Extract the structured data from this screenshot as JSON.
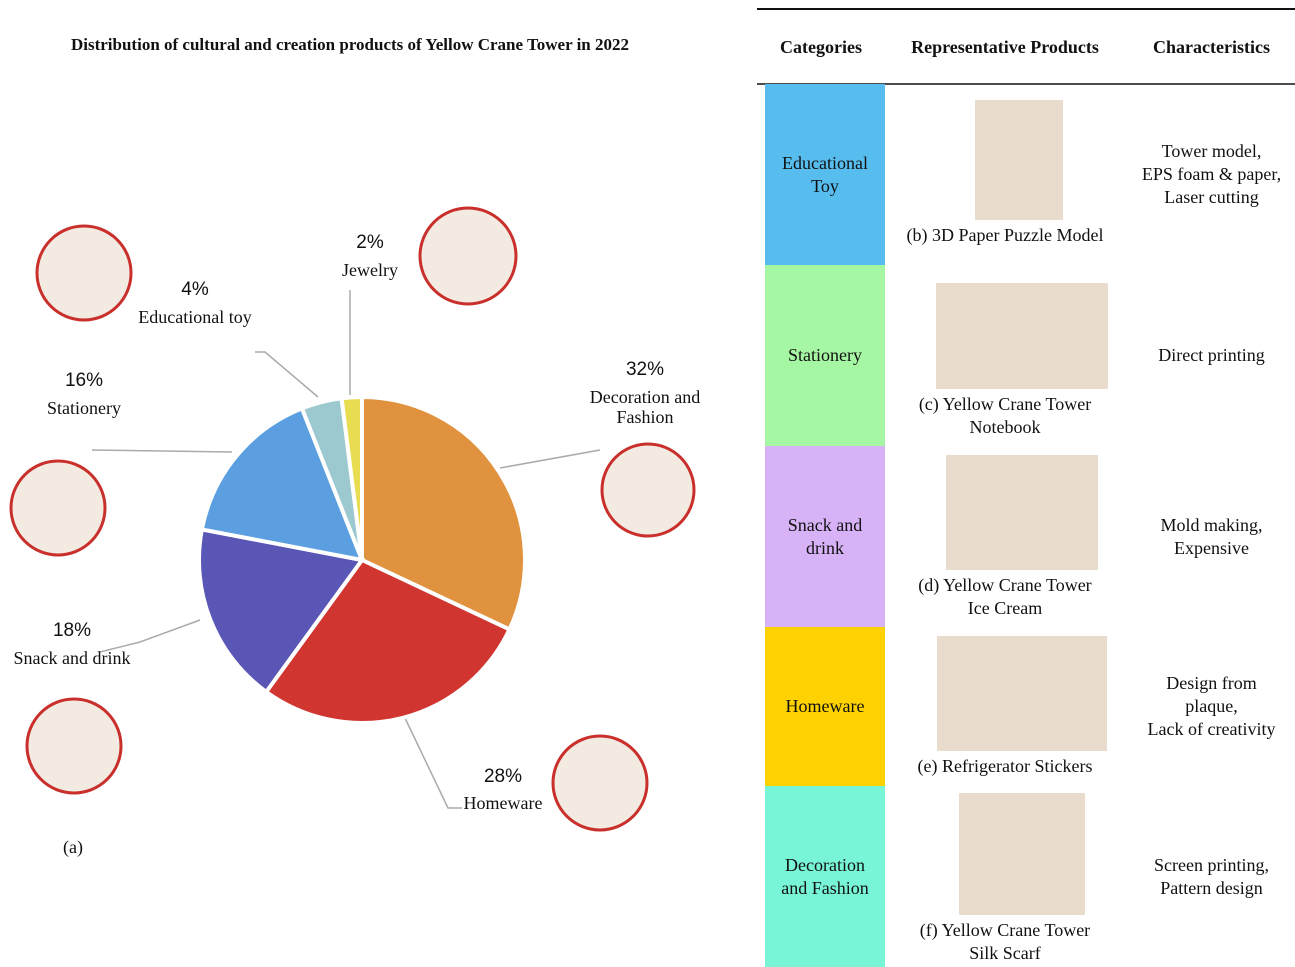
{
  "chart_data": {
    "type": "pie",
    "title": "Distribution of cultural and creation products of Yellow Crane Tower in 2022",
    "categories": [
      "Decoration and Fashion",
      "Homeware",
      "Snack and drink",
      "Stationery",
      "Educational toy",
      "Jewelry"
    ],
    "values": [
      32,
      28,
      18,
      16,
      4,
      2
    ],
    "value_labels": [
      "32%",
      "28%",
      "18%",
      "16%",
      "4%",
      "2%"
    ],
    "colors": [
      "#e0923e",
      "#d03530",
      "#5a56b5",
      "#5b9fe0",
      "#9cc8d0",
      "#e8dc50"
    ],
    "caption": "(a)"
  },
  "table": {
    "headers": [
      "Categories",
      "Representative Products",
      "Characteristics"
    ],
    "rows": [
      [
        "Educational\nToy",
        "(b) 3D Paper Puzzle Model",
        "Tower model,\nEPS foam & paper,\nLaser cutting"
      ],
      [
        "Stationery",
        "(c) Yellow Crane Tower\nNotebook",
        "Direct printing"
      ],
      [
        "Snack and\ndrink",
        "(d) Yellow Crane Tower\nIce Cream",
        "Mold making,\nExpensive"
      ],
      [
        "Homeware",
        "(e) Refrigerator Stickers",
        "Design from\nplaque,\nLack of creativity"
      ],
      [
        "Decoration\nand Fashion",
        "(f) Yellow Crane Tower\nSilk Scarf",
        "Screen printing,\nPattern design"
      ]
    ],
    "colors": [
      "#57bdee",
      "#a6f7a3",
      "#d8b2f7",
      "#fdd200",
      "#78f5d6"
    ]
  }
}
